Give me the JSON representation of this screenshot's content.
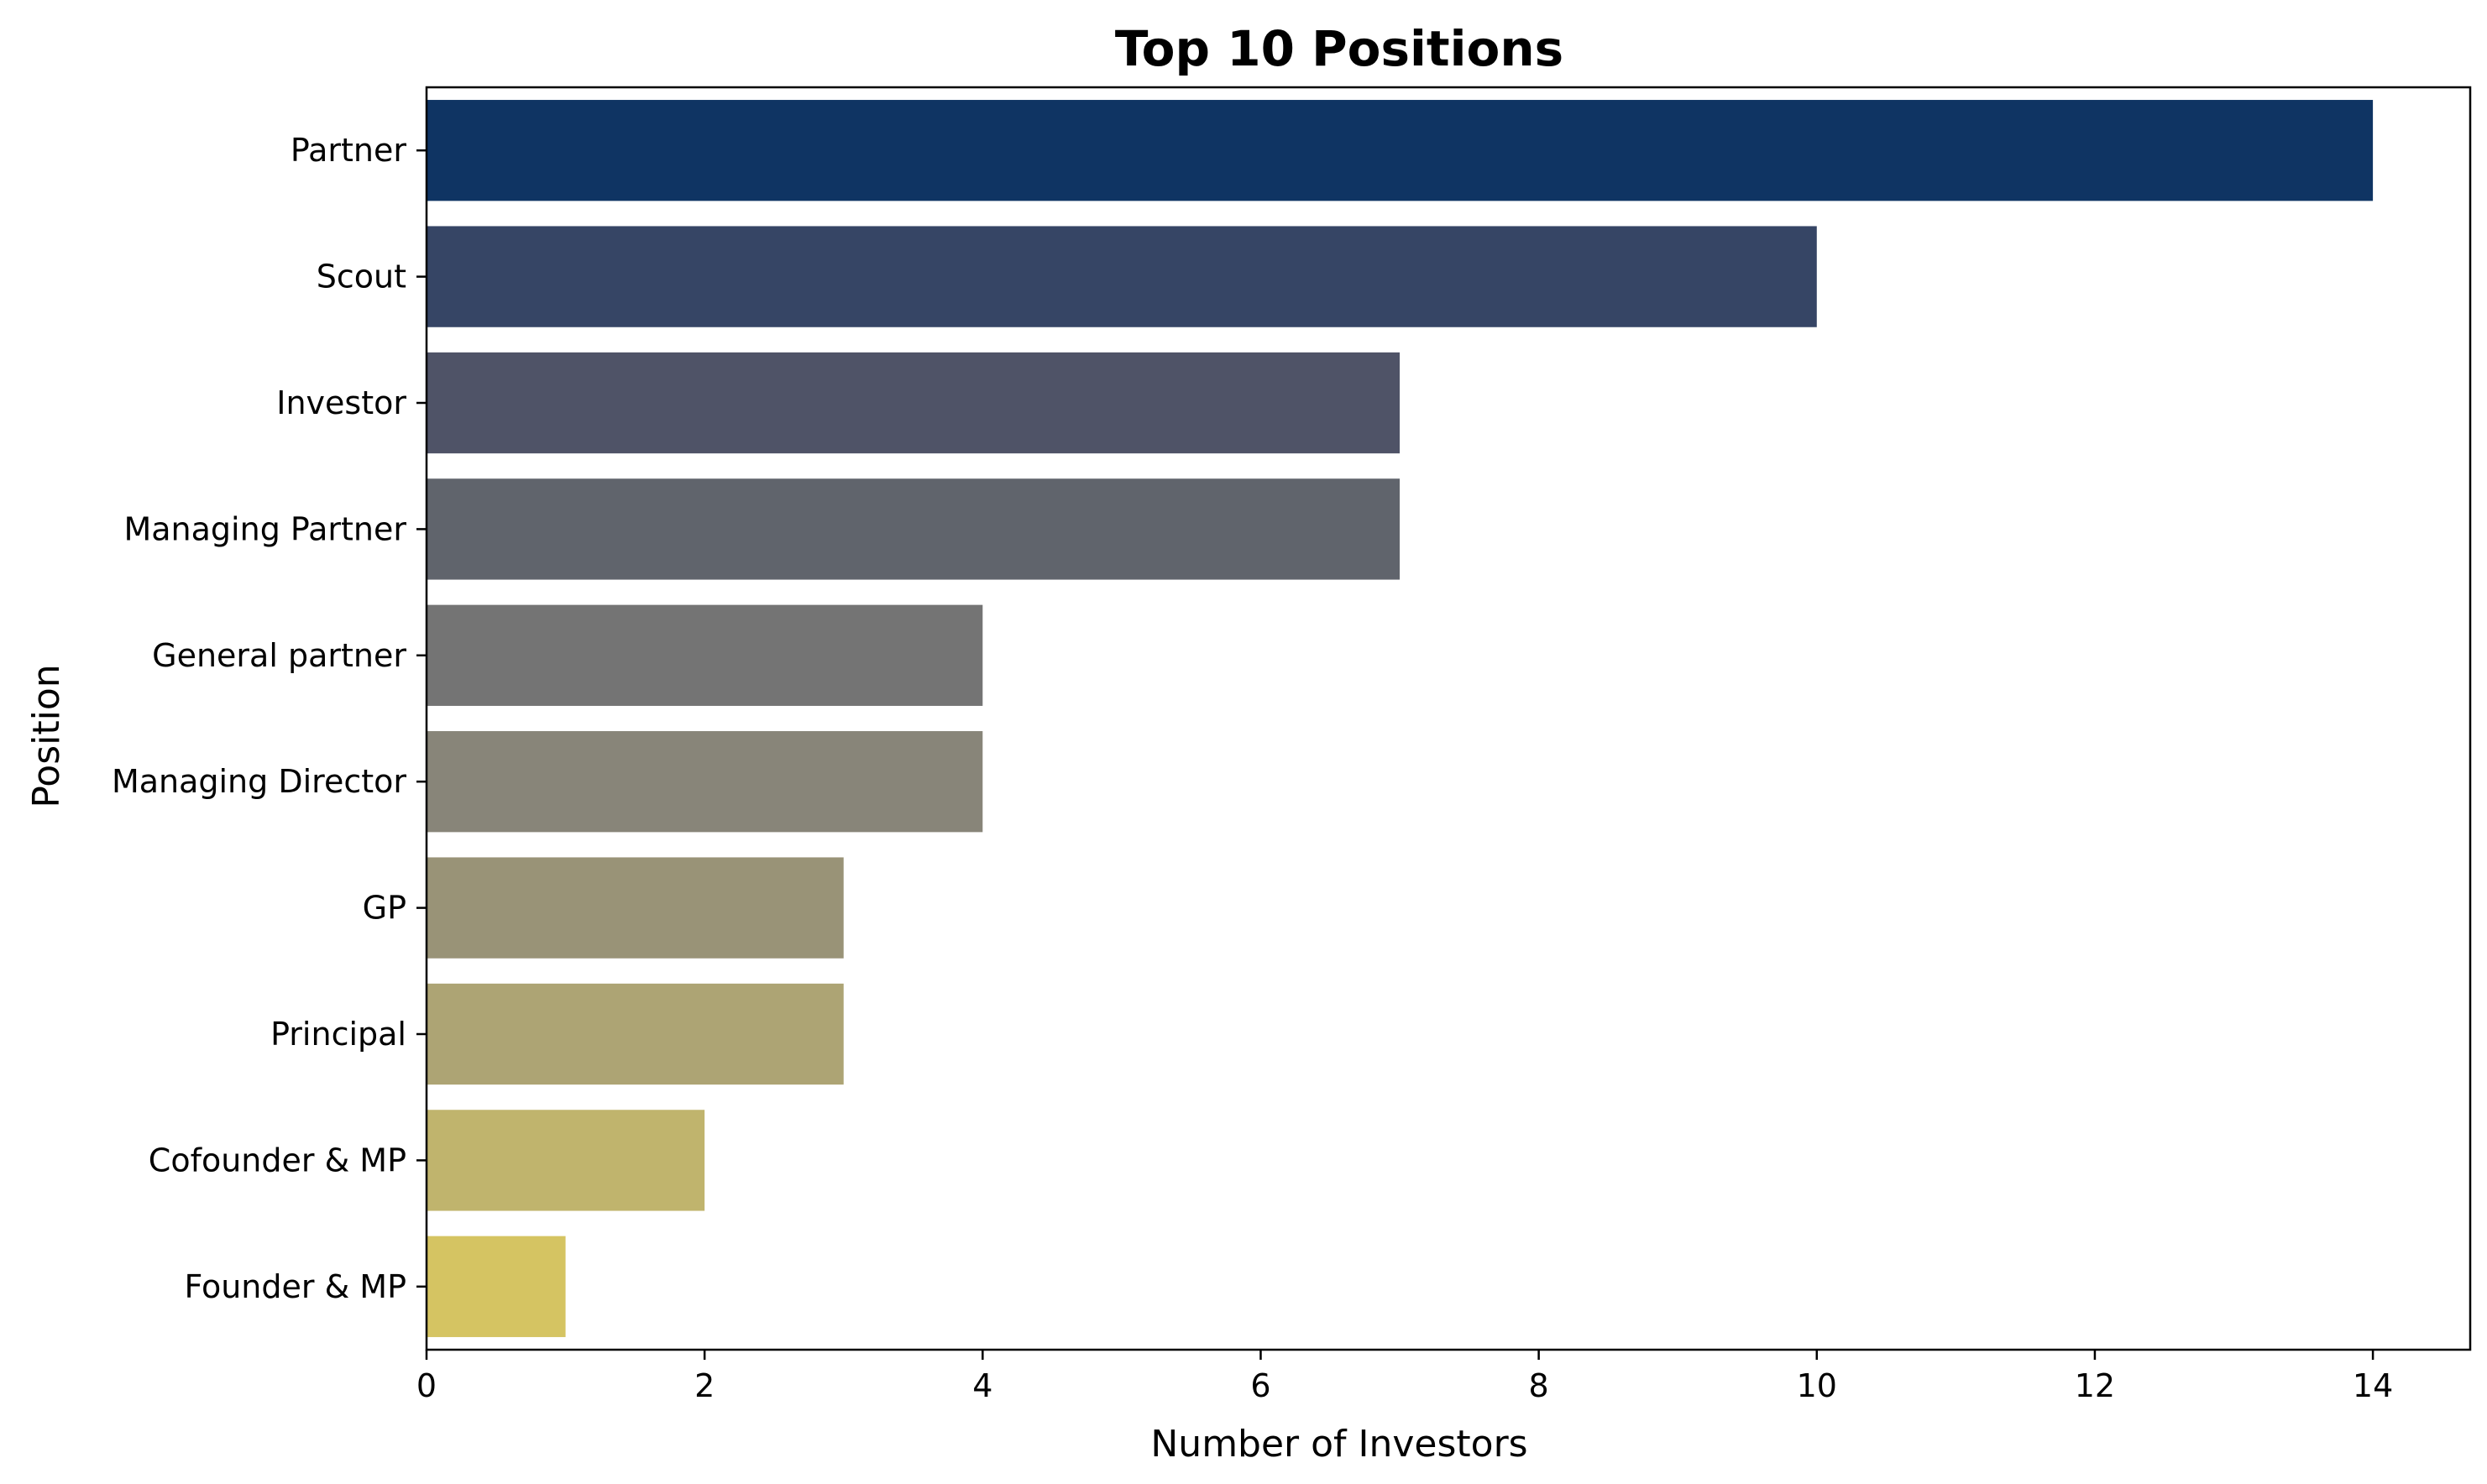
{
  "chart_data": {
    "type": "bar",
    "orientation": "horizontal",
    "title": "Top 10 Positions",
    "xlabel": "Number of Investors",
    "ylabel": "Position",
    "xlim": [
      0,
      14.7
    ],
    "xticks": [
      0,
      2,
      4,
      6,
      8,
      10,
      12,
      14
    ],
    "grid": false,
    "legend": "none",
    "categories": [
      "Partner",
      "Scout",
      "Investor",
      "Managing Partner",
      "General partner",
      "Managing Director",
      "GP",
      "Principal",
      "Cofounder & MP",
      "Founder & MP"
    ],
    "values": [
      14,
      10,
      7,
      7,
      4,
      4,
      3,
      3,
      2,
      1
    ],
    "colors": [
      "#0f3463",
      "#364565",
      "#4f5367",
      "#60646c",
      "#747474",
      "#888579",
      "#999377",
      "#ada474",
      "#c0b46d",
      "#d5c462"
    ]
  }
}
